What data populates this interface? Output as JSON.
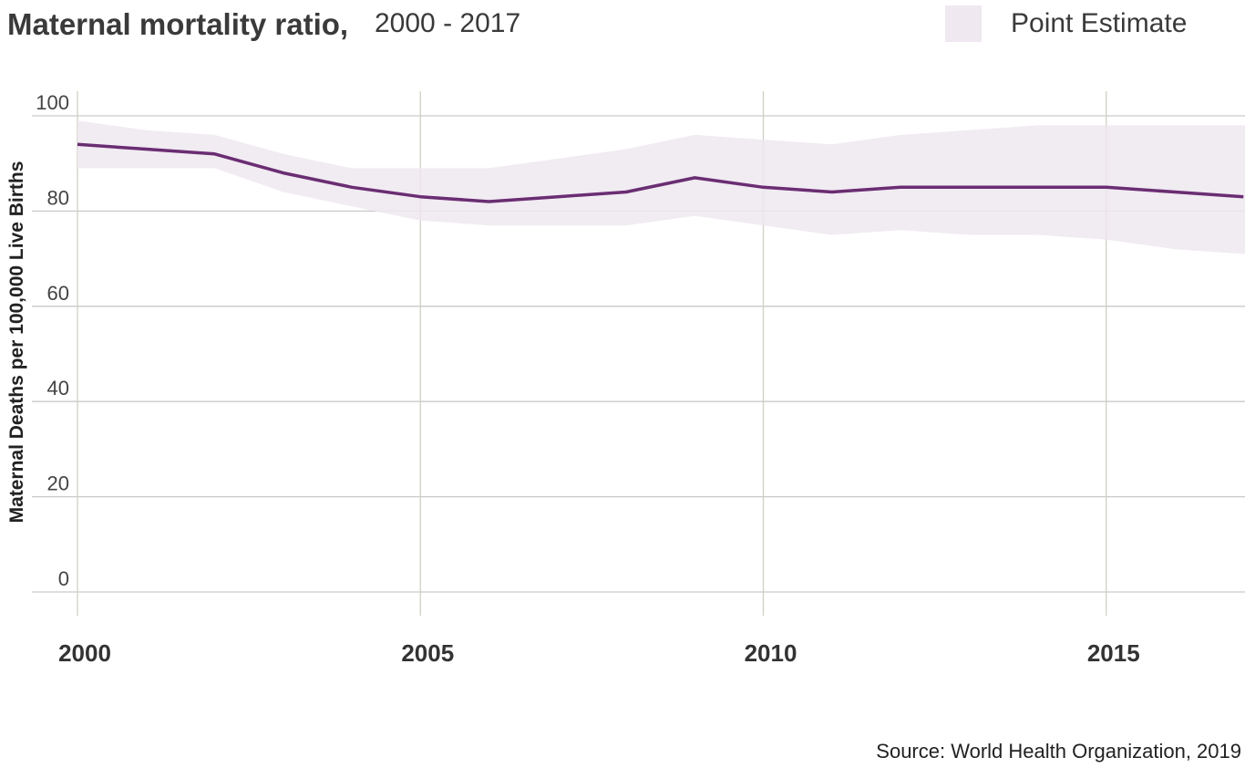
{
  "chart_data": {
    "type": "line",
    "title": "Maternal mortality ratio,",
    "subtitle": "2000 - 2017",
    "ylabel": "Maternal Deaths per 100,000 Live Births",
    "xlabel": "",
    "xlim": [
      1999.87,
      2017.6
    ],
    "ylim": [
      -5,
      104
    ],
    "x_ticks": [
      2000,
      2005,
      2010,
      2015
    ],
    "y_ticks": [
      0,
      20,
      40,
      60,
      80,
      100
    ],
    "grid": true,
    "legend": {
      "position": "top-right",
      "entries": [
        {
          "label": "Point Estimate"
        }
      ]
    },
    "x": [
      2000,
      2001,
      2002,
      2003,
      2004,
      2005,
      2006,
      2007,
      2008,
      2009,
      2010,
      2011,
      2012,
      2013,
      2014,
      2015,
      2016,
      2017
    ],
    "series": [
      {
        "values": [
          94,
          93,
          92,
          88,
          85,
          83,
          82,
          83,
          84,
          87,
          85,
          84,
          85,
          85,
          85,
          85,
          84,
          83
        ],
        "lower": [
          89,
          89,
          89,
          84,
          81,
          78,
          77,
          77,
          77,
          79,
          77,
          75,
          76,
          75,
          75,
          74,
          72,
          71
        ],
        "upper": [
          99,
          97,
          96,
          92,
          89,
          89,
          89,
          91,
          93,
          96,
          95,
          94,
          96,
          97,
          98,
          98,
          98,
          98
        ]
      }
    ],
    "colors": {
      "line": "#6a2d72",
      "band": "#efe8f0",
      "grid": "#c9c9c9",
      "vgrid": "#d0cfc4"
    }
  },
  "source": "Source: World Health Organization, 2019"
}
